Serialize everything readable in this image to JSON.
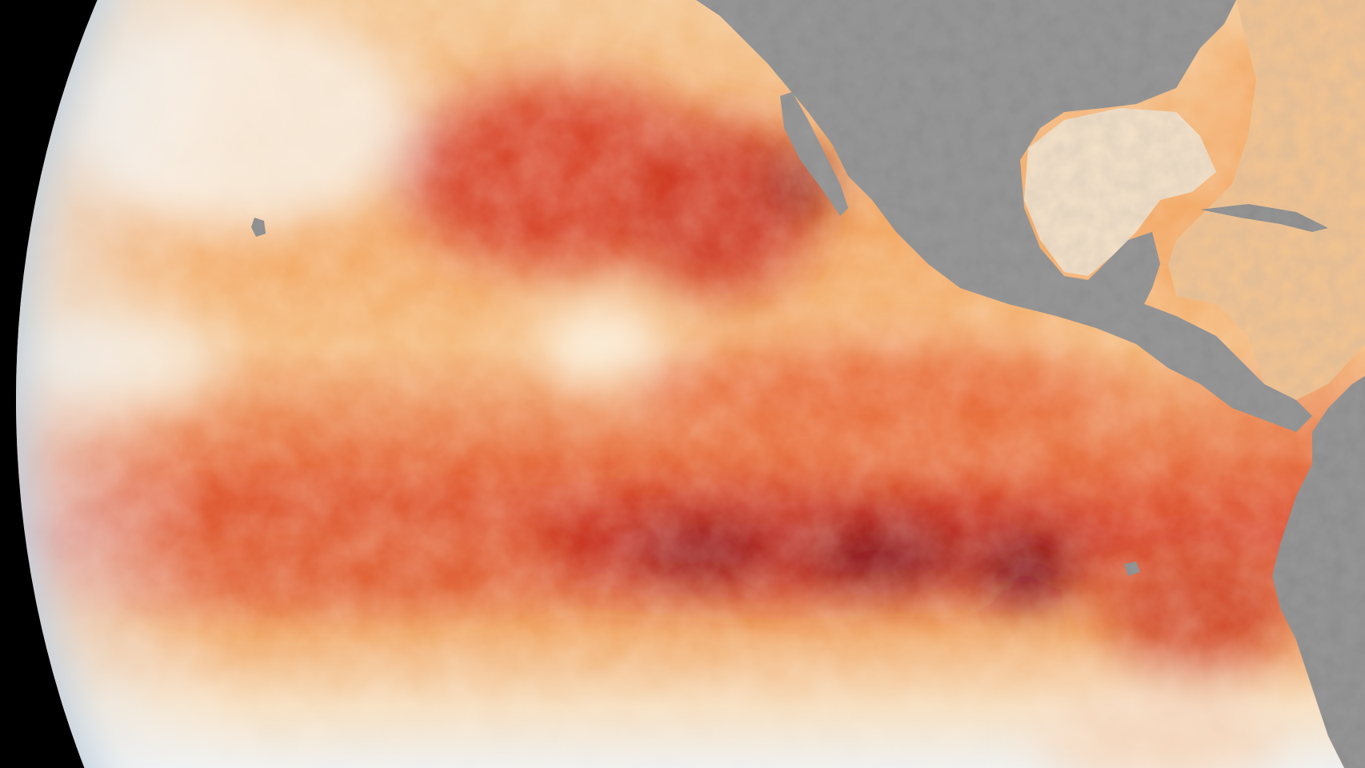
{
  "scene": {
    "subject": "sea-surface-temperature-anomaly-globe",
    "colors": {
      "space": "#000000",
      "cool": "#dfe8f0",
      "neutral": "#f7ead6",
      "warm": "#f4a35a",
      "hot": "#d9452a",
      "very_hot": "#7a0a1e",
      "land": "#8f8f8f",
      "land_shadow": "#6e6e6e"
    }
  }
}
